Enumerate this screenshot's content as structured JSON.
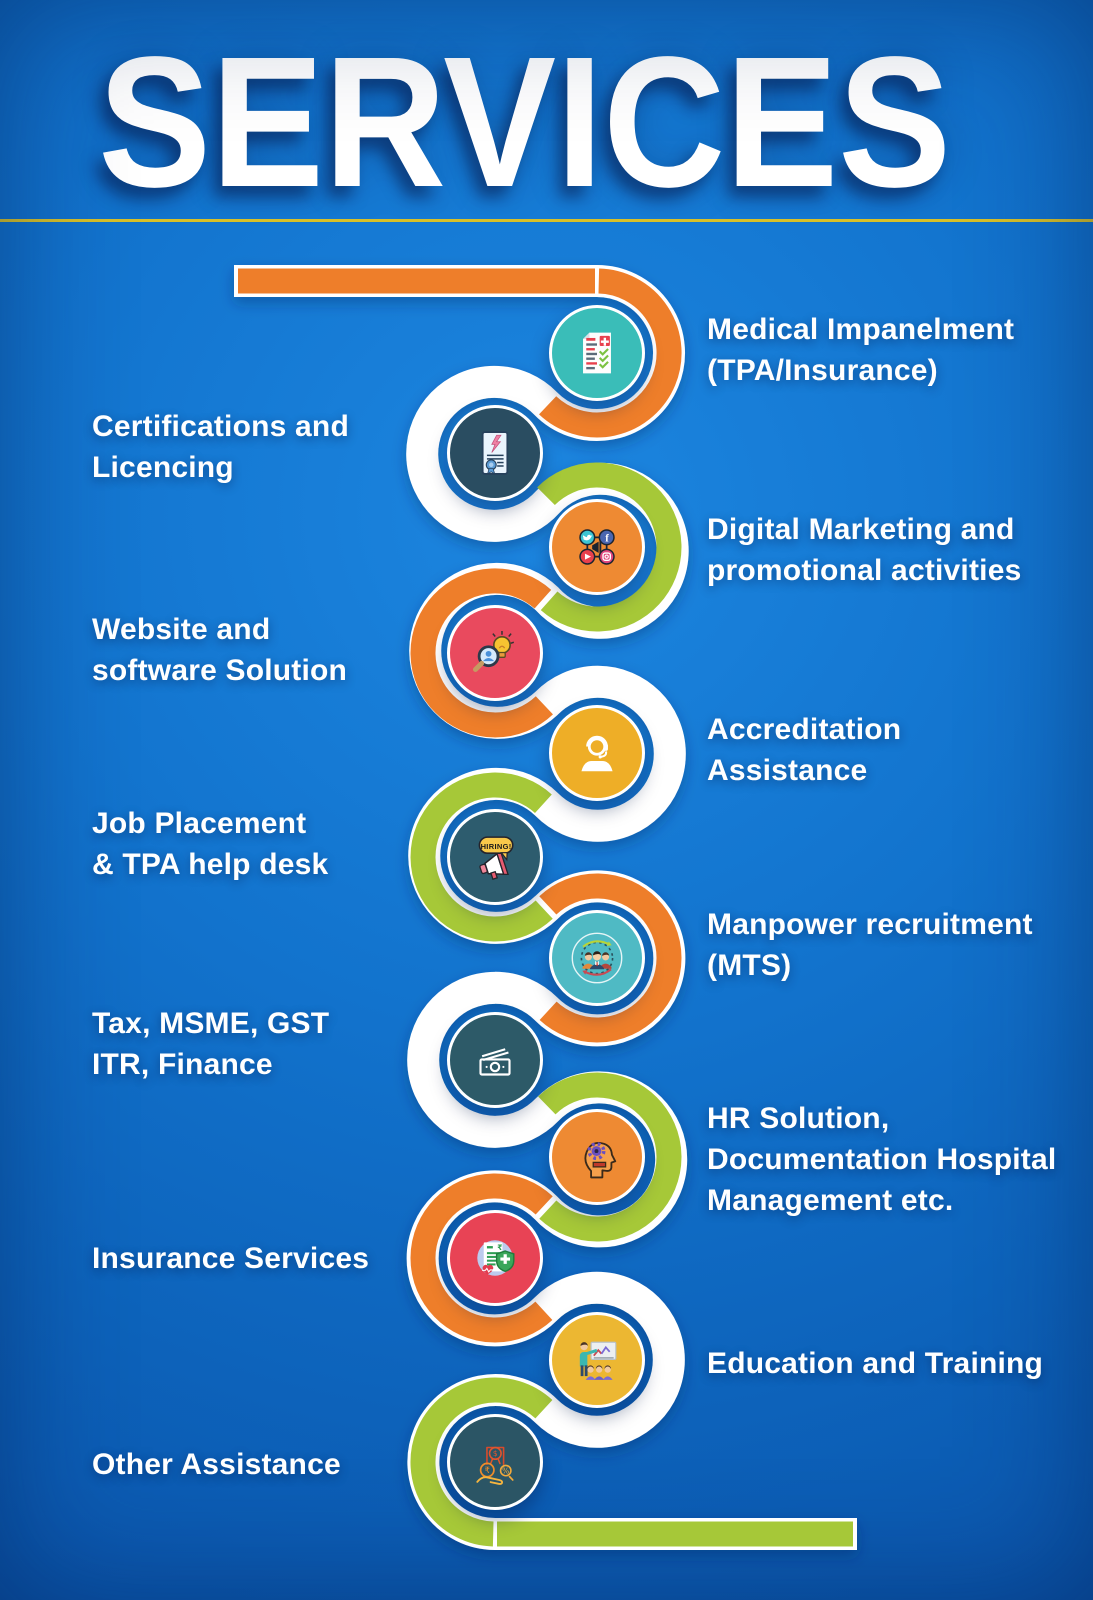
{
  "title": "SERVICES",
  "palette": {
    "background_blue": "#0f6ac5",
    "divider_yellow": "#d8c028",
    "arc_orange": "#ee7e2c",
    "arc_white": "#ffffff",
    "arc_green": "#a6c838",
    "text_white": "#ffffff"
  },
  "services": [
    {
      "id": "medical-impanelment",
      "side": "right",
      "lines": [
        "Medical Impanelment",
        "(TPA/Insurance)"
      ],
      "icon": "medical-document-icon",
      "node_color": "#3abdb8",
      "arc_color": "orange"
    },
    {
      "id": "certifications-licencing",
      "side": "left",
      "lines": [
        "Certifications and",
        "Licencing"
      ],
      "icon": "certificate-icon",
      "node_color": "#2a4d61",
      "arc_color": "white"
    },
    {
      "id": "digital-marketing",
      "side": "right",
      "lines": [
        "Digital Marketing and",
        "promotional activities"
      ],
      "icon": "social-media-icon",
      "node_color": "#ee8a33",
      "arc_color": "green"
    },
    {
      "id": "website-software",
      "side": "left",
      "lines": [
        "Website and",
        "software Solution"
      ],
      "icon": "search-idea-icon",
      "node_color": "#e94a5e",
      "arc_color": "orange"
    },
    {
      "id": "accreditation-assistance",
      "side": "right",
      "lines": [
        "Accreditation",
        "Assistance"
      ],
      "icon": "support-agent-icon",
      "node_color": "#eeae27",
      "arc_color": "white"
    },
    {
      "id": "job-placement",
      "side": "left",
      "lines": [
        "Job Placement",
        "& TPA help desk"
      ],
      "icon": "hiring-megaphone-icon",
      "node_color": "#2d5c6e",
      "arc_color": "green",
      "icon_text": "HIRING!"
    },
    {
      "id": "manpower-recruitment",
      "side": "right",
      "lines": [
        "Manpower recruitment",
        "(MTS)"
      ],
      "icon": "team-cycle-icon",
      "node_color": "#4fbac4",
      "arc_color": "orange"
    },
    {
      "id": "tax-msme-gst",
      "side": "left",
      "lines": [
        "Tax, MSME, GST",
        "ITR, Finance"
      ],
      "icon": "banknote-icon",
      "node_color": "#2d5a68",
      "arc_color": "white"
    },
    {
      "id": "hr-solution",
      "side": "right",
      "lines": [
        "HR Solution,",
        "Documentation Hospital",
        "Management etc."
      ],
      "icon": "head-gear-icon",
      "node_color": "#ee8a33",
      "arc_color": "green"
    },
    {
      "id": "insurance-services",
      "side": "left",
      "lines": [
        "Insurance Services"
      ],
      "icon": "insurance-shield-icon",
      "node_color": "#e84355",
      "arc_color": "orange"
    },
    {
      "id": "education-training",
      "side": "right",
      "lines": [
        "Education and Training"
      ],
      "icon": "training-presentation-icon",
      "node_color": "#ecb732",
      "arc_color": "white"
    },
    {
      "id": "other-assistance",
      "side": "left",
      "lines": [
        "Other Assistance"
      ],
      "icon": "hand-benefits-icon",
      "node_color": "#2b5565",
      "arc_color": "green"
    }
  ]
}
